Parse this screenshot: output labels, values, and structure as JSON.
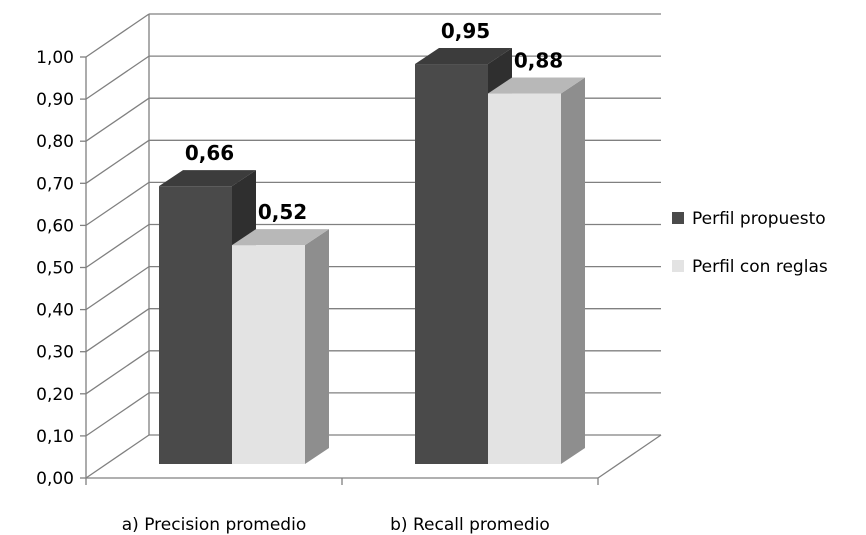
{
  "chart_data": {
    "type": "bar",
    "categories": [
      "a) Precision promedio",
      "b) Recall promedio"
    ],
    "series": [
      {
        "name": "Perfil propuesto",
        "values": [
          0.66,
          0.95
        ],
        "labels": [
          "0,66",
          "0,95"
        ]
      },
      {
        "name": "Perfil con reglas",
        "values": [
          0.52,
          0.88
        ],
        "labels": [
          "0,52",
          "0,88"
        ]
      }
    ],
    "yticks": [
      "0,00",
      "0,10",
      "0,20",
      "0,30",
      "0,40",
      "0,50",
      "0,60",
      "0,70",
      "0,80",
      "0,90",
      "1,00"
    ],
    "ylim": [
      0,
      1
    ],
    "grid": true,
    "legend": "right",
    "colors": {
      "series1_front": "#4a4a4a",
      "series1_side": "#2f2f2f",
      "series1_top": "#3c3c3c",
      "series2_front": "#e3e3e3",
      "series2_side": "#8e8e8e",
      "series2_top": "#b8b8b8",
      "grid": "#808080"
    }
  }
}
